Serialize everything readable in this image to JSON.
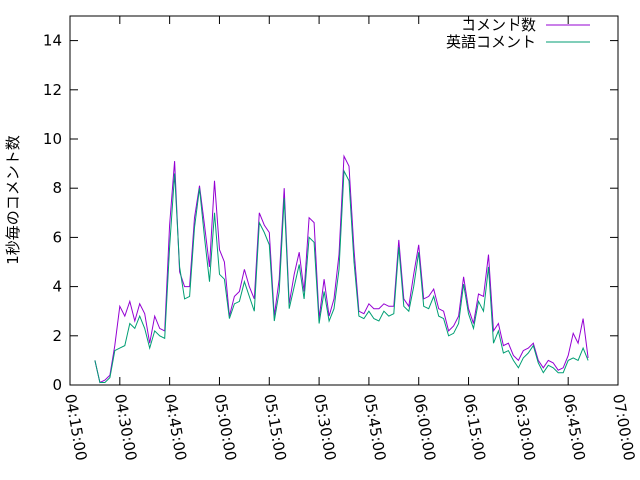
{
  "chart_data": {
    "type": "line",
    "title": "",
    "xlabel": "",
    "ylabel": "1秒毎のコメント数",
    "xlim": [
      "04:15:00",
      "07:00:00"
    ],
    "ylim": [
      0,
      15
    ],
    "grid": false,
    "legend_position": "top-right",
    "x_ticks": [
      "04:15:00",
      "04:30:00",
      "04:45:00",
      "05:00:00",
      "05:15:00",
      "05:30:00",
      "05:45:00",
      "06:00:00",
      "06:15:00",
      "06:30:00",
      "06:45:00",
      "07:00:00"
    ],
    "y_ticks": [
      "0",
      "2",
      "4",
      "6",
      "8",
      "10",
      "12",
      "14"
    ],
    "x_start": "04:22:30",
    "x_step_seconds": 90,
    "series": [
      {
        "name": "コメント数",
        "color": "#9400d3",
        "values": [
          1.0,
          0.1,
          0.2,
          0.4,
          1.6,
          3.2,
          2.8,
          3.4,
          2.6,
          3.3,
          2.9,
          1.7,
          2.8,
          2.3,
          2.2,
          6.5,
          9.1,
          4.6,
          4.0,
          4.0,
          6.8,
          8.1,
          6.5,
          4.8,
          8.3,
          5.5,
          5.0,
          2.8,
          3.6,
          3.8,
          4.7,
          4.0,
          3.5,
          7.0,
          6.5,
          6.2,
          2.8,
          4.3,
          8.0,
          3.3,
          4.5,
          5.4,
          3.8,
          6.8,
          6.6,
          2.7,
          4.3,
          2.8,
          3.5,
          5.3,
          9.3,
          8.9,
          5.5,
          3.0,
          2.9,
          3.3,
          3.1,
          3.1,
          3.3,
          3.2,
          3.2,
          5.9,
          3.5,
          3.2,
          4.5,
          5.7,
          3.5,
          3.6,
          3.9,
          3.1,
          3.0,
          2.2,
          2.4,
          2.8,
          4.4,
          3.1,
          2.5,
          3.7,
          3.6,
          5.3,
          2.2,
          2.5,
          1.6,
          1.7,
          1.2,
          1.0,
          1.4,
          1.5,
          1.7,
          1.0,
          0.7,
          1.0,
          0.9,
          0.6,
          0.7,
          1.2,
          2.1,
          1.7,
          2.7,
          1.1
        ]
      },
      {
        "name": "英語コメント",
        "color": "#009e73",
        "values": [
          1.0,
          0.1,
          0.1,
          0.3,
          1.4,
          1.5,
          1.6,
          2.5,
          2.3,
          2.8,
          2.3,
          1.5,
          2.2,
          2.0,
          1.9,
          5.6,
          8.6,
          4.8,
          3.5,
          3.6,
          6.4,
          8.0,
          6.0,
          4.2,
          7.0,
          4.5,
          4.3,
          2.7,
          3.3,
          3.4,
          4.2,
          3.6,
          3.0,
          6.6,
          6.2,
          5.7,
          2.6,
          3.8,
          7.6,
          3.1,
          4.0,
          4.9,
          3.5,
          6.0,
          5.8,
          2.5,
          3.8,
          2.6,
          3.1,
          4.7,
          8.7,
          8.3,
          5.0,
          2.8,
          2.7,
          3.0,
          2.7,
          2.6,
          3.0,
          2.8,
          2.9,
          5.6,
          3.2,
          3.0,
          4.0,
          5.4,
          3.2,
          3.1,
          3.6,
          2.8,
          2.7,
          2.0,
          2.1,
          2.5,
          4.1,
          2.9,
          2.3,
          3.4,
          3.0,
          4.8,
          1.7,
          2.2,
          1.3,
          1.4,
          1.0,
          0.7,
          1.1,
          1.3,
          1.6,
          0.9,
          0.5,
          0.8,
          0.7,
          0.5,
          0.5,
          1.0,
          1.1,
          1.0,
          1.5,
          1.0
        ]
      }
    ]
  }
}
